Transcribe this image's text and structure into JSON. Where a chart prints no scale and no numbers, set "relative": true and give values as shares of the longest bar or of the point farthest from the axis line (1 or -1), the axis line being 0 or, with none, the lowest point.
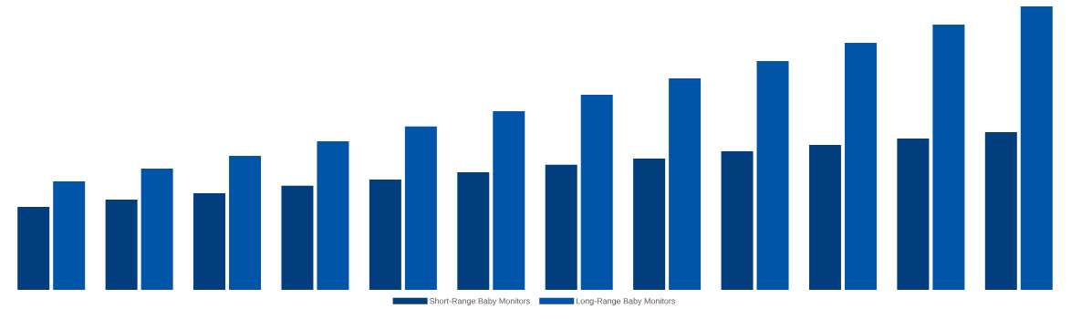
{
  "chart_data": {
    "type": "bar",
    "relative": true,
    "legend": "bottom",
    "categories": [
      null,
      null,
      null,
      null,
      null,
      null,
      null,
      null,
      null,
      null,
      null,
      null
    ],
    "series": [
      {
        "name": "Short-Range Baby Monitors",
        "color": "#023e7d",
        "values": [
          0.293,
          0.318,
          0.341,
          0.367,
          0.389,
          0.415,
          0.441,
          0.463,
          0.489,
          0.511,
          0.534,
          0.556
        ]
      },
      {
        "name": "Long-Range Baby Monitors",
        "color": "#0055a8",
        "values": [
          0.383,
          0.428,
          0.473,
          0.524,
          0.576,
          0.63,
          0.688,
          0.746,
          0.807,
          0.871,
          0.936,
          1
        ]
      }
    ]
  }
}
